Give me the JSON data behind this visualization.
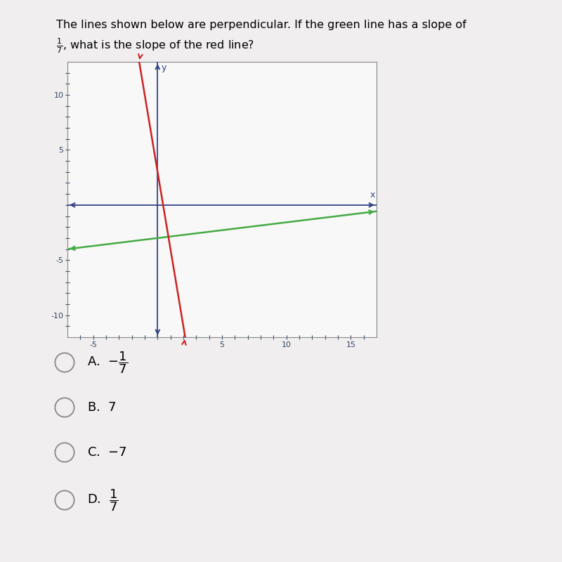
{
  "title_line1": "The lines shown below are perpendicular. If the green line has a slope of",
  "background_color": "#f0eeee",
  "plot_bg_color": "#f8f8f8",
  "green_slope": 0.142857,
  "green_intercept": -3.0,
  "red_slope": -7,
  "red_intercept": 3.0,
  "xlim": [
    -7,
    17
  ],
  "ylim": [
    -12,
    13
  ],
  "green_color": "#44aa44",
  "red_color": "#cc2222",
  "axis_color": "#334488",
  "tick_label_color": "#334466",
  "spine_color": "#888888",
  "labeled_xticks": [
    -5,
    5,
    10,
    15
  ],
  "labeled_yticks": [
    -10,
    -5,
    5,
    10
  ],
  "all_xticks": [
    -6,
    -5,
    -4,
    -3,
    -2,
    -1,
    0,
    1,
    2,
    3,
    4,
    5,
    6,
    7,
    8,
    9,
    10,
    11,
    12,
    13,
    14,
    15,
    16
  ],
  "all_yticks": [
    -11,
    -10,
    -9,
    -8,
    -7,
    -6,
    -5,
    -4,
    -3,
    -2,
    -1,
    0,
    1,
    2,
    3,
    4,
    5,
    6,
    7,
    8,
    9,
    10,
    11,
    12
  ],
  "xlabel": "x",
  "ylabel": "y",
  "options": [
    {
      "label": "A.",
      "math": "-\\frac{1}{7}"
    },
    {
      "label": "B.",
      "math": "7"
    },
    {
      "label": "C.",
      "math": "-7"
    },
    {
      "label": "D.",
      "math": "\\frac{1}{7}"
    }
  ]
}
